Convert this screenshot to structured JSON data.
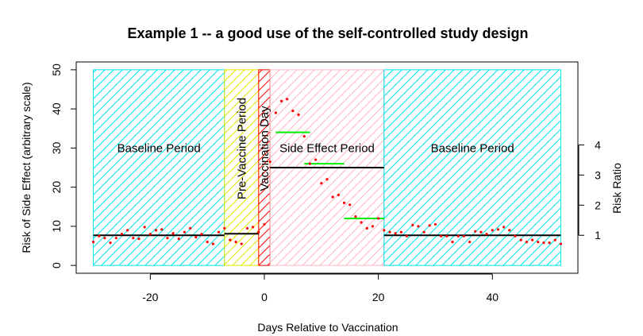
{
  "chart_data": {
    "type": "scatter",
    "title": "Example 1 -- a good use of the self-controlled study design",
    "xlabel": "Days Relative to Vaccination",
    "ylabel": "Risk of Side Effect (arbitrary scale)",
    "ylabel_right": "Risk Ratio",
    "xlim": [
      -33,
      55
    ],
    "ylim": [
      -2,
      52
    ],
    "x_ticks": [
      -20,
      0,
      20,
      40
    ],
    "x_tick_labels": [
      "-20",
      "0",
      "20",
      "40"
    ],
    "y_ticks": [
      0,
      10,
      20,
      30,
      40,
      50
    ],
    "y_tick_labels": [
      "0",
      "10",
      "20",
      "30",
      "40",
      "50"
    ],
    "right_ticks": [
      1,
      2,
      3,
      4
    ],
    "right_tick_labels": [
      "1",
      "2",
      "3",
      "4"
    ],
    "right_scale_factor": 7.7,
    "grid": false,
    "regions": [
      {
        "label": "Baseline Period",
        "x0": -30,
        "x1": -7,
        "color": "#00e5ee",
        "hatch": "cyan",
        "label_rotated": false,
        "label_y": 30
      },
      {
        "label": "Pre-Vaccine Period",
        "x0": -7,
        "x1": -1,
        "color": "#e6e600",
        "hatch": "yellow",
        "label_rotated": true,
        "label_y": 30
      },
      {
        "label": "Vaccination Day",
        "x0": -1,
        "x1": 1,
        "color": "#ff0000",
        "hatch": "red",
        "label_rotated": true,
        "label_y": 30
      },
      {
        "label": "Side Effect Period",
        "x0": 1,
        "x1": 21,
        "color": "#ffb6c1",
        "hatch": "pink",
        "label_rotated": false,
        "label_y": 30
      },
      {
        "label": "Baseline Period",
        "x0": 21,
        "x1": 52,
        "color": "#00e5ee",
        "hatch": "cyan",
        "label_rotated": false,
        "label_y": 30
      }
    ],
    "mean_lines": [
      {
        "x0": -30,
        "x1": -7,
        "y": 7.7
      },
      {
        "x0": -7,
        "x1": -1,
        "y": 8.1
      },
      {
        "x0": 1,
        "x1": 21,
        "y": 25
      },
      {
        "x0": 21,
        "x1": 52,
        "y": 7.7
      }
    ],
    "ratio_lines": [
      {
        "x0": 2,
        "x1": 8,
        "y": 34
      },
      {
        "x0": 7,
        "x1": 14,
        "y": 26
      },
      {
        "x0": 14,
        "x1": 21,
        "y": 12
      }
    ],
    "series": [
      {
        "x": [
          -30,
          -29,
          -28,
          -27,
          -26,
          -25,
          -24,
          -23,
          -22,
          -21,
          -20,
          -19,
          -18,
          -17,
          -16,
          -15,
          -14,
          -13,
          -12,
          -11,
          -10,
          -9,
          -8,
          -7,
          -6,
          -5,
          -4,
          -3,
          -2,
          -1,
          0,
          1,
          2,
          3,
          4,
          5,
          6,
          7,
          8,
          9,
          10,
          11,
          12,
          13,
          14,
          15,
          16,
          17,
          18,
          19,
          20,
          21,
          22,
          23,
          24,
          25,
          26,
          27,
          28,
          29,
          30,
          31,
          32,
          33,
          34,
          35,
          36,
          37,
          38,
          39,
          40,
          41,
          42,
          43,
          44,
          45,
          46,
          47,
          48,
          49,
          50,
          51,
          52
        ],
        "y": [
          6,
          7.5,
          7,
          5.8,
          7,
          8,
          9,
          7,
          6.8,
          9.8,
          8,
          9,
          9.2,
          7,
          8.2,
          6.8,
          8.5,
          9.5,
          7.2,
          8,
          6,
          5.5,
          8.5,
          9.5,
          6.5,
          6,
          5.5,
          9.5,
          9.8,
          8.5,
          10.5,
          26.5,
          39,
          42,
          42.5,
          39.5,
          38.5,
          33,
          26,
          27,
          21,
          22,
          17.5,
          18,
          16,
          15.5,
          12.5,
          11,
          9.5,
          10,
          12,
          9,
          8.5,
          8.2,
          8.5,
          7.5,
          10.3,
          10,
          8.5,
          10.2,
          10.5,
          7.5,
          7.5,
          6,
          7.5,
          7.5,
          6,
          8.7,
          8.5,
          8,
          9,
          9.2,
          9.8,
          9,
          7.5,
          6.5,
          6,
          6.5,
          6,
          5.8,
          5.8,
          6.5,
          5.5
        ]
      }
    ]
  }
}
